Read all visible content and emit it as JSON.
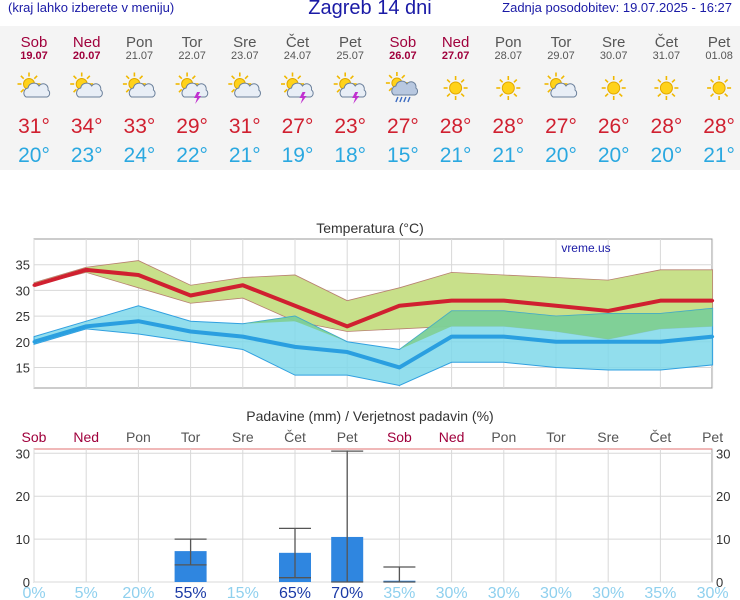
{
  "header": {
    "menu_hint": "(kraj lahko izberete v meniju)",
    "title": "Zagreb 14 dni",
    "updated": "Zadnja posodobitev: 19.07.2025 - 16:27"
  },
  "colors": {
    "header_text": "#1a1aa6",
    "weekend": "#a0003c",
    "weekday": "#555555",
    "max_temp": "#d02030",
    "min_temp": "#2aa8e0",
    "max_band": "#c8e08a",
    "min_band": "#7fd8ea",
    "overlap_band": "#7ccc80",
    "precip_bar": "#2f86e0"
  },
  "days": [
    {
      "day": "Sob",
      "date": "19.07",
      "weekend": true,
      "icon": "sun-cloud-icon",
      "max": "31°",
      "min": "20°"
    },
    {
      "day": "Ned",
      "date": "20.07",
      "weekend": true,
      "icon": "sun-cloud-icon",
      "max": "34°",
      "min": "23°"
    },
    {
      "day": "Pon",
      "date": "21.07",
      "weekend": false,
      "icon": "sun-cloud-icon",
      "max": "33°",
      "min": "24°"
    },
    {
      "day": "Tor",
      "date": "22.07",
      "weekend": false,
      "icon": "sun-thunder-icon",
      "max": "29°",
      "min": "22°"
    },
    {
      "day": "Sre",
      "date": "23.07",
      "weekend": false,
      "icon": "sun-cloud-icon",
      "max": "31°",
      "min": "21°"
    },
    {
      "day": "Čet",
      "date": "24.07",
      "weekend": false,
      "icon": "sun-thunder-icon",
      "max": "27°",
      "min": "19°"
    },
    {
      "day": "Pet",
      "date": "25.07",
      "weekend": false,
      "icon": "sun-thunder-icon",
      "max": "23°",
      "min": "18°"
    },
    {
      "day": "Sob",
      "date": "26.07",
      "weekend": true,
      "icon": "rain-cloud-icon",
      "max": "27°",
      "min": "15°"
    },
    {
      "day": "Ned",
      "date": "27.07",
      "weekend": true,
      "icon": "sun-icon",
      "max": "28°",
      "min": "21°"
    },
    {
      "day": "Pon",
      "date": "28.07",
      "weekend": false,
      "icon": "sun-icon",
      "max": "28°",
      "min": "21°"
    },
    {
      "day": "Tor",
      "date": "29.07",
      "weekend": false,
      "icon": "sun-cloud-icon",
      "max": "27°",
      "min": "20°"
    },
    {
      "day": "Sre",
      "date": "30.07",
      "weekend": false,
      "icon": "sun-icon",
      "max": "26°",
      "min": "20°"
    },
    {
      "day": "Čet",
      "date": "31.07",
      "weekend": false,
      "icon": "sun-icon",
      "max": "28°",
      "min": "20°"
    },
    {
      "day": "Pet",
      "date": "01.08",
      "weekend": false,
      "icon": "sun-icon",
      "max": "28°",
      "min": "21°"
    }
  ],
  "chart_data": [
    {
      "type": "line",
      "title": "Temperatura (°C)",
      "watermark": "vreme.us",
      "ylim": [
        11,
        40
      ],
      "yticks": [
        15,
        20,
        25,
        30,
        35
      ],
      "categories": [
        "Sob",
        "Ned",
        "Pon",
        "Tor",
        "Sre",
        "Čet",
        "Pet",
        "Sob",
        "Ned",
        "Pon",
        "Tor",
        "Sre",
        "Čet",
        "Pet"
      ],
      "series": [
        {
          "values": [
            31,
            34,
            33,
            29,
            31,
            27,
            23,
            27,
            28,
            28,
            27,
            26,
            28,
            28
          ],
          "band_high": [
            31.5,
            34.5,
            35.8,
            31,
            32.5,
            33,
            28,
            30.5,
            33.5,
            33,
            32.5,
            32,
            34,
            34
          ],
          "band_low": [
            31,
            33.5,
            30.5,
            27.5,
            28.5,
            24,
            22,
            22.5,
            23,
            23,
            22,
            20.5,
            22.5,
            23
          ]
        },
        {
          "values": [
            20,
            23,
            24,
            22,
            21,
            19,
            18,
            15,
            21,
            21,
            20,
            20,
            20,
            21
          ],
          "band_high": [
            21,
            24,
            27,
            24,
            23.5,
            25,
            20,
            18.5,
            26,
            26,
            25,
            25.5,
            25.5,
            26.5
          ],
          "band_low": [
            19.5,
            22.5,
            21.5,
            20,
            18.5,
            13.5,
            13.5,
            11.5,
            16,
            16,
            15,
            14.5,
            14.5,
            15.5
          ]
        }
      ],
      "grid": true
    },
    {
      "type": "bar",
      "title": "Padavine (mm) / Verjetnost padavin (%)",
      "ylim": [
        0,
        31
      ],
      "yticks": [
        0,
        10,
        20,
        30
      ],
      "categories": [
        "Sob",
        "Ned",
        "Pon",
        "Tor",
        "Sre",
        "Čet",
        "Pet",
        "Sob",
        "Ned",
        "Pon",
        "Tor",
        "Sre",
        "Čet",
        "Pet"
      ],
      "values": [
        0,
        0,
        0,
        7.2,
        0,
        6.8,
        10.5,
        0.3,
        0,
        0,
        0,
        0,
        0,
        0
      ],
      "error_high": [
        null,
        null,
        null,
        10,
        null,
        12.5,
        30.5,
        3.5,
        null,
        null,
        null,
        null,
        null,
        null
      ],
      "error_low": [
        null,
        null,
        null,
        4,
        null,
        1,
        0,
        0,
        null,
        null,
        null,
        null,
        null,
        null
      ],
      "probability": [
        "0%",
        "5%",
        "20%",
        "55%",
        "15%",
        "65%",
        "70%",
        "35%",
        "30%",
        "30%",
        "30%",
        "30%",
        "35%",
        "30%"
      ],
      "grid": true
    }
  ]
}
